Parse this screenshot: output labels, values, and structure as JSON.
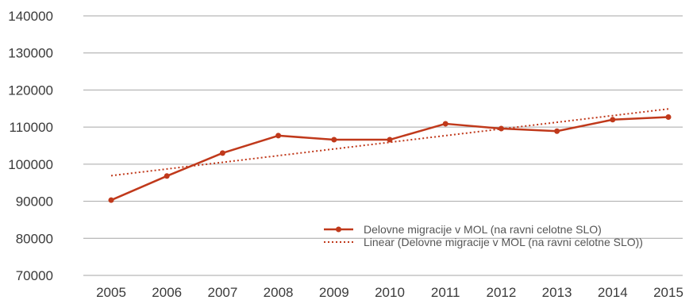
{
  "chart_data": {
    "type": "line",
    "categories": [
      "2005",
      "2006",
      "2007",
      "2008",
      "2009",
      "2010",
      "2011",
      "2012",
      "2013",
      "2014",
      "2015"
    ],
    "series": [
      {
        "name": "Delovne migracije v MOL (na ravni celotne SLO)",
        "values": [
          90300,
          96800,
          103000,
          107700,
          106600,
          106600,
          110900,
          109600,
          108900,
          112000,
          112700
        ],
        "style": "solid-with-markers",
        "color": "#c0391b"
      },
      {
        "name": "Linear (Delovne migracije v MOL (na ravni celotne SLO))",
        "values": [
          96900,
          98700,
          100500,
          102300,
          104100,
          105900,
          107700,
          109500,
          111300,
          113100,
          114900
        ],
        "style": "dotted",
        "color": "#c0391b"
      }
    ],
    "yticks": [
      "70000",
      "80000",
      "90000",
      "100000",
      "110000",
      "120000",
      "130000",
      "140000"
    ],
    "ylim": [
      70000,
      140000
    ],
    "grid": "horizontal",
    "legend_position": "bottom-right",
    "colors": {
      "gridline": "#a6a6a6",
      "tick_text": "#3a3a3a"
    }
  }
}
